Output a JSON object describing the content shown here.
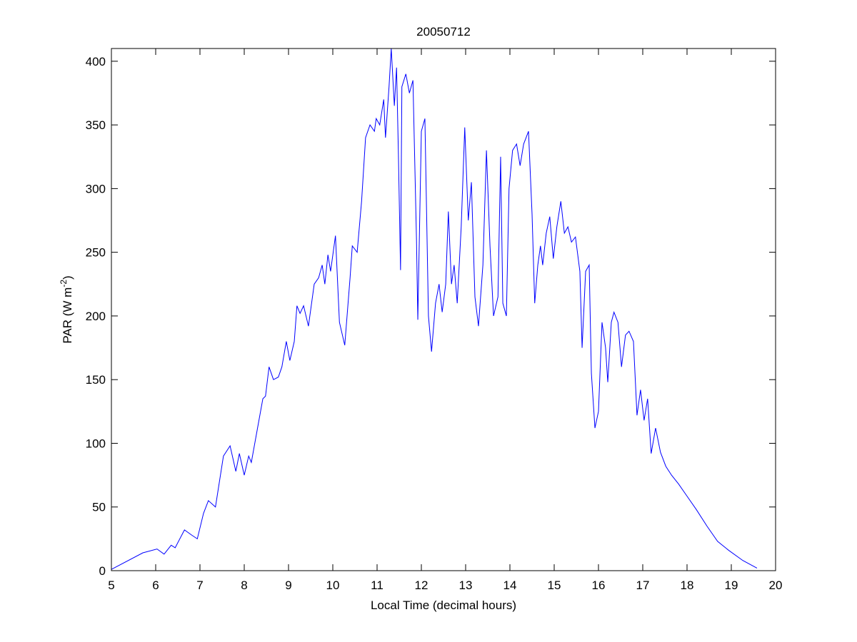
{
  "chart_data": {
    "type": "line",
    "title": "20050712",
    "xlabel": "Local Time (decimal hours)",
    "ylabel": {
      "text": "PAR (W m",
      "superscript": "-2",
      "suffix": ")"
    },
    "xlim": [
      5,
      20
    ],
    "xticks": [
      5,
      6,
      7,
      8,
      9,
      10,
      11,
      12,
      13,
      14,
      15,
      16,
      17,
      18,
      19,
      20
    ],
    "ylim": [
      0,
      410
    ],
    "yticks": [
      0,
      50,
      100,
      150,
      200,
      250,
      300,
      350,
      400
    ],
    "grid": false,
    "series": [
      {
        "color": "#0000ff",
        "x": [
          5.0,
          5.71,
          6.03,
          6.19,
          6.35,
          6.44,
          6.65,
          6.81,
          6.94,
          7.08,
          7.19,
          7.35,
          7.53,
          7.68,
          7.81,
          7.89,
          8.0,
          8.1,
          8.16,
          8.29,
          8.42,
          8.48,
          8.56,
          8.66,
          8.77,
          8.85,
          8.95,
          9.03,
          9.13,
          9.19,
          9.26,
          9.34,
          9.45,
          9.58,
          9.68,
          9.76,
          9.82,
          9.89,
          9.95,
          10.06,
          10.15,
          10.27,
          10.39,
          10.44,
          10.55,
          10.65,
          10.74,
          10.84,
          10.94,
          10.98,
          11.06,
          11.15,
          11.19,
          11.27,
          11.32,
          11.39,
          11.44,
          11.48,
          11.53,
          11.56,
          11.65,
          11.73,
          11.81,
          11.89,
          11.92,
          12.0,
          12.08,
          12.16,
          12.23,
          12.32,
          12.4,
          12.47,
          12.55,
          12.61,
          12.68,
          12.74,
          12.81,
          12.9,
          12.98,
          13.06,
          13.13,
          13.21,
          13.29,
          13.39,
          13.47,
          13.55,
          13.63,
          13.73,
          13.79,
          13.84,
          13.92,
          13.98,
          14.06,
          14.15,
          14.23,
          14.31,
          14.42,
          14.5,
          14.56,
          14.63,
          14.69,
          14.74,
          14.82,
          14.9,
          14.98,
          15.06,
          15.15,
          15.23,
          15.31,
          15.39,
          15.48,
          15.58,
          15.63,
          15.71,
          15.79,
          15.84,
          15.92,
          16.0,
          16.08,
          16.16,
          16.21,
          16.29,
          16.35,
          16.44,
          16.52,
          16.61,
          16.69,
          16.79,
          16.87,
          16.95,
          17.03,
          17.11,
          17.19,
          17.29,
          17.4,
          17.52,
          17.65,
          17.81,
          17.97,
          18.21,
          18.45,
          18.69,
          18.94,
          19.26,
          19.58
        ],
        "values": [
          1,
          14,
          17,
          13,
          20,
          18,
          32,
          28,
          25,
          45,
          55,
          50,
          90,
          98,
          78,
          92,
          75,
          90,
          85,
          110,
          135,
          137,
          160,
          150,
          152,
          160,
          180,
          165,
          180,
          208,
          202,
          208,
          192,
          225,
          230,
          240,
          225,
          248,
          235,
          263,
          195,
          177,
          230,
          255,
          250,
          290,
          340,
          350,
          345,
          355,
          350,
          370,
          340,
          380,
          410,
          365,
          395,
          330,
          236,
          380,
          390,
          375,
          385,
          260,
          197,
          345,
          355,
          200,
          172,
          210,
          225,
          203,
          225,
          282,
          225,
          240,
          210,
          270,
          348,
          275,
          305,
          215,
          192,
          240,
          330,
          255,
          200,
          215,
          325,
          210,
          200,
          300,
          330,
          335,
          318,
          335,
          345,
          280,
          210,
          240,
          255,
          240,
          265,
          278,
          245,
          270,
          290,
          265,
          270,
          258,
          262,
          235,
          175,
          235,
          240,
          155,
          112,
          125,
          195,
          175,
          148,
          195,
          203,
          195,
          160,
          185,
          188,
          180,
          122,
          142,
          118,
          135,
          92,
          112,
          93,
          82,
          75,
          68,
          60,
          48,
          35,
          23,
          16,
          8,
          2
        ]
      }
    ]
  }
}
